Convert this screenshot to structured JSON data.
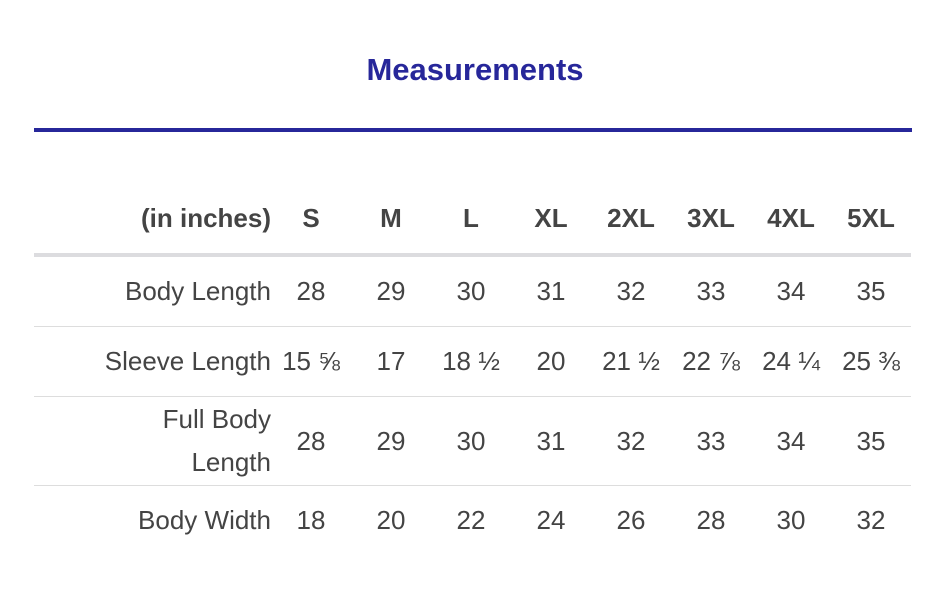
{
  "title": "Measurements",
  "headers": [
    "(in inches)",
    "S",
    "M",
    "L",
    "XL",
    "2XL",
    "3XL",
    "4XL",
    "5XL"
  ],
  "rows": [
    [
      "Body Length",
      "28",
      "29",
      "30",
      "31",
      "32",
      "33",
      "34",
      "35"
    ],
    [
      "Sleeve Length",
      "15 ⅝",
      "17",
      "18 ½",
      "20",
      "21 ½",
      "22 ⅞",
      "24 ¼",
      "25 ⅜"
    ],
    [
      "Full Body Length",
      "28",
      "29",
      "30",
      "31",
      "32",
      "33",
      "34",
      "35"
    ],
    [
      "Body Width",
      "18",
      "20",
      "22",
      "24",
      "26",
      "28",
      "30",
      "32"
    ]
  ],
  "colors": {
    "accent": "#27279a",
    "text": "#444444"
  }
}
